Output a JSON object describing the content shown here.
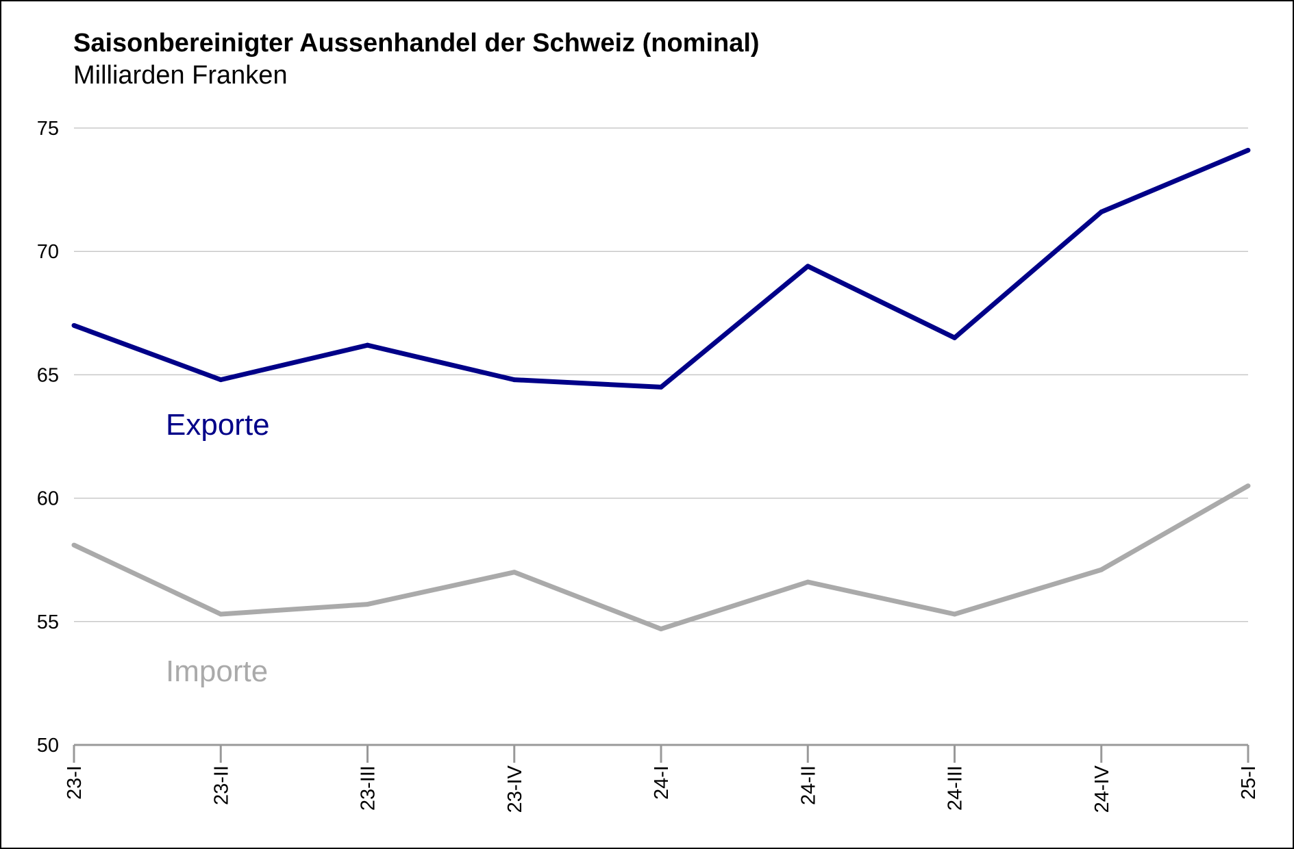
{
  "chart_data": {
    "type": "line",
    "title": "Saisonbereinigter Aussenhandel der Schweiz (nominal)",
    "subtitle": "Milliarden Franken",
    "categories": [
      "23-I",
      "23-II",
      "23-III",
      "23-IV",
      "24-I",
      "24-II",
      "24-III",
      "24-IV",
      "25-I"
    ],
    "ylim": [
      50,
      75
    ],
    "yticks": [
      50,
      55,
      60,
      65,
      70,
      75
    ],
    "grid": true,
    "series": [
      {
        "name": "Exporte",
        "color": "#000088",
        "values": [
          67.0,
          64.8,
          66.2,
          64.8,
          64.5,
          69.4,
          66.5,
          71.6,
          74.1
        ]
      },
      {
        "name": "Importe",
        "color": "#aaaaaa",
        "values": [
          58.1,
          55.3,
          55.7,
          57.0,
          54.7,
          56.6,
          55.3,
          57.1,
          60.5
        ]
      }
    ]
  }
}
